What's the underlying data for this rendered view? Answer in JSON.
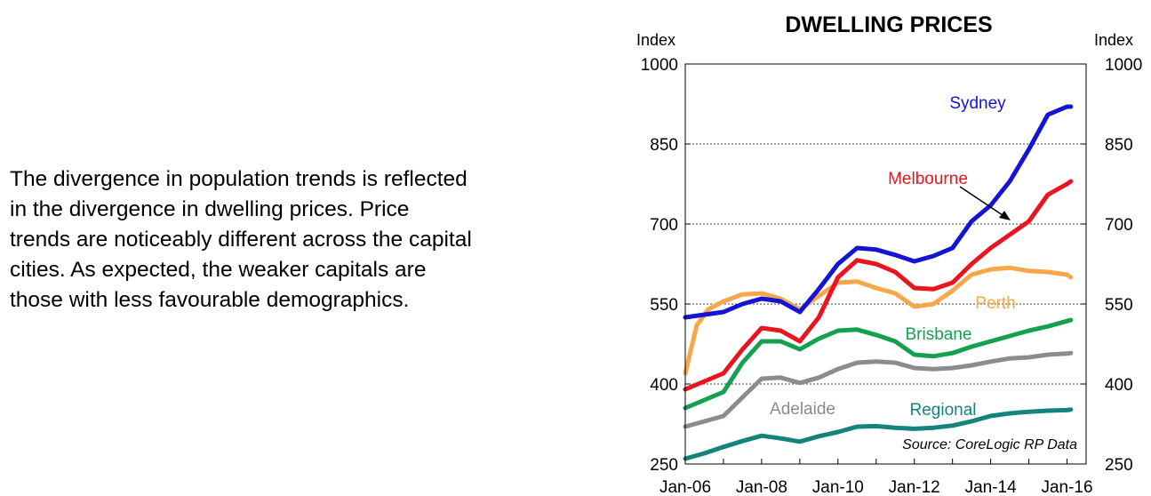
{
  "text_block": {
    "lines": [
      "The divergence in population trends is reflected",
      "in the divergence in dwelling prices.  Price",
      "trends are noticeably different across the capital",
      "cities.  As expected, the weaker capitals are",
      "those with less favourable demographics."
    ]
  },
  "chart_data": {
    "type": "line",
    "title": "DWELLING PRICES",
    "ylabel_left": "Index",
    "ylabel_right": "Index",
    "ylim": [
      250,
      1000
    ],
    "yticks": [
      250,
      400,
      550,
      700,
      850,
      1000
    ],
    "ytick_labels": [
      "250",
      "400",
      "550",
      "700",
      "850",
      "1000"
    ],
    "xlim": [
      2006.0,
      2016.5
    ],
    "xticks": [
      2006,
      2008,
      2010,
      2012,
      2014,
      2016
    ],
    "xtick_labels": [
      "Jan-06",
      "Jan-08",
      "Jan-10",
      "Jan-12",
      "Jan-14",
      "Jan-16"
    ],
    "grid": "dotted horizontal at 550, 700, 850",
    "source": "Source: CoreLogic RP Data",
    "series": [
      {
        "name": "Sydney",
        "color": "#1414d2",
        "x": [
          2006.0,
          2006.5,
          2007.0,
          2007.5,
          2008.0,
          2008.5,
          2009.0,
          2009.5,
          2010.0,
          2010.5,
          2011.0,
          2011.5,
          2012.0,
          2012.5,
          2013.0,
          2013.5,
          2014.0,
          2014.5,
          2015.0,
          2015.5,
          2016.0,
          2016.1
        ],
        "values": [
          525,
          530,
          535,
          550,
          560,
          555,
          535,
          578,
          625,
          655,
          652,
          642,
          630,
          640,
          655,
          705,
          735,
          780,
          840,
          905,
          920,
          920
        ]
      },
      {
        "name": "Melbourne",
        "color": "#e8141e",
        "x": [
          2006.0,
          2006.5,
          2007.0,
          2007.5,
          2008.0,
          2008.5,
          2009.0,
          2009.5,
          2010.0,
          2010.5,
          2011.0,
          2011.5,
          2012.0,
          2012.5,
          2013.0,
          2013.5,
          2014.0,
          2014.5,
          2015.0,
          2015.5,
          2016.0,
          2016.1
        ],
        "values": [
          390,
          405,
          420,
          465,
          505,
          500,
          480,
          525,
          600,
          632,
          625,
          610,
          580,
          578,
          590,
          625,
          655,
          680,
          705,
          755,
          775,
          780
        ]
      },
      {
        "name": "Perth",
        "color": "#f7a747",
        "x": [
          2006.0,
          2006.3,
          2006.6,
          2007.0,
          2007.5,
          2008.0,
          2008.5,
          2009.0,
          2009.5,
          2010.0,
          2010.5,
          2011.0,
          2011.5,
          2012.0,
          2012.5,
          2013.0,
          2013.5,
          2014.0,
          2014.5,
          2015.0,
          2015.5,
          2016.0,
          2016.1
        ],
        "values": [
          420,
          510,
          540,
          555,
          568,
          570,
          560,
          540,
          565,
          590,
          592,
          580,
          570,
          545,
          550,
          575,
          605,
          615,
          618,
          612,
          610,
          605,
          600
        ]
      },
      {
        "name": "Brisbane",
        "color": "#13a14f",
        "x": [
          2006.0,
          2006.5,
          2007.0,
          2007.5,
          2008.0,
          2008.5,
          2009.0,
          2009.5,
          2010.0,
          2010.5,
          2011.0,
          2011.5,
          2012.0,
          2012.5,
          2013.0,
          2013.5,
          2014.0,
          2014.5,
          2015.0,
          2015.5,
          2016.0,
          2016.1
        ],
        "values": [
          355,
          370,
          385,
          440,
          480,
          480,
          465,
          485,
          500,
          502,
          492,
          480,
          455,
          452,
          458,
          470,
          480,
          490,
          500,
          508,
          518,
          520
        ]
      },
      {
        "name": "Adelaide",
        "color": "#8c8c8c",
        "x": [
          2006.0,
          2006.5,
          2007.0,
          2007.5,
          2008.0,
          2008.5,
          2009.0,
          2009.5,
          2010.0,
          2010.5,
          2011.0,
          2011.5,
          2012.0,
          2012.5,
          2013.0,
          2013.5,
          2014.0,
          2014.5,
          2015.0,
          2015.5,
          2016.0,
          2016.1
        ],
        "values": [
          320,
          330,
          340,
          375,
          410,
          412,
          402,
          412,
          428,
          440,
          442,
          440,
          430,
          428,
          430,
          435,
          442,
          448,
          450,
          455,
          457,
          458
        ]
      },
      {
        "name": "Regional",
        "color": "#14847a",
        "x": [
          2006.0,
          2006.5,
          2007.0,
          2007.5,
          2008.0,
          2008.5,
          2009.0,
          2009.5,
          2010.0,
          2010.5,
          2011.0,
          2011.5,
          2012.0,
          2012.5,
          2013.0,
          2013.5,
          2014.0,
          2014.5,
          2015.0,
          2015.5,
          2016.0,
          2016.1
        ],
        "values": [
          260,
          270,
          282,
          293,
          303,
          298,
          292,
          302,
          310,
          320,
          321,
          318,
          316,
          318,
          322,
          330,
          340,
          345,
          348,
          350,
          351,
          352
        ]
      }
    ]
  }
}
